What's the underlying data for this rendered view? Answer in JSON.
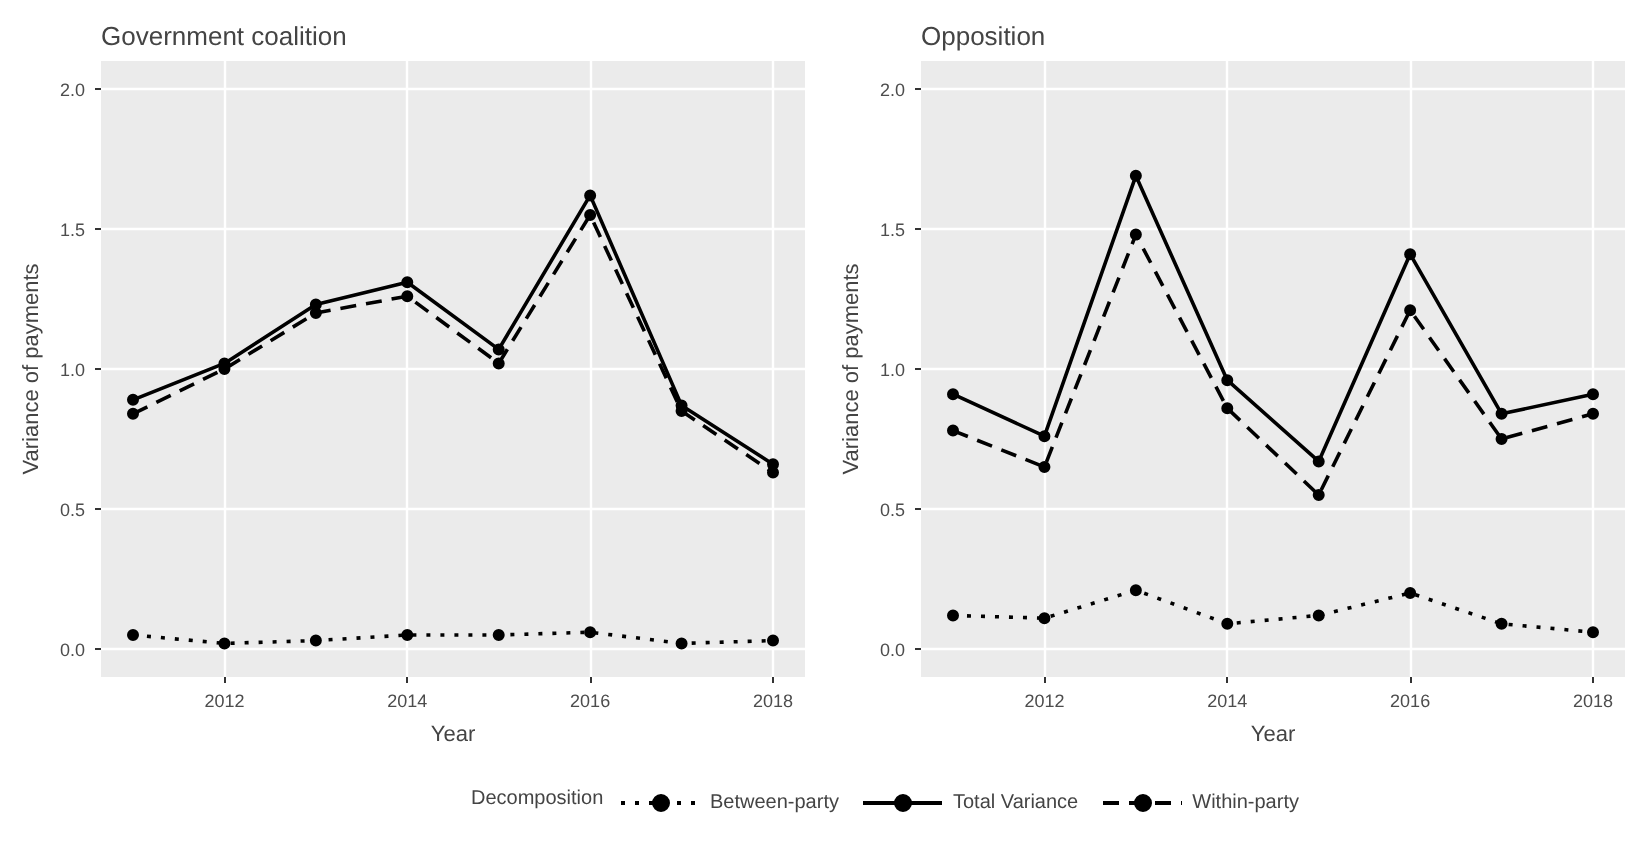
{
  "chart_data": [
    {
      "type": "line",
      "title": "Government coalition",
      "xlabel": "Year",
      "ylabel": "Variance of payments",
      "legend": "bottom",
      "legend_title": "Decomposition",
      "marker": "circle",
      "grid": true,
      "x": [
        2011,
        2012,
        2013,
        2014,
        2015,
        2016,
        2017,
        2018
      ],
      "xlim": [
        2010.65,
        2018.35
      ],
      "xticks": [
        2012,
        2014,
        2016,
        2018
      ],
      "ylim": [
        -0.1,
        2.1
      ],
      "yticks": [
        {
          "value": 0,
          "label": "0.0"
        },
        {
          "value": 0.5,
          "label": "0.5"
        },
        {
          "value": 1,
          "label": "1.0"
        },
        {
          "value": 1.5,
          "label": "1.5"
        },
        {
          "value": 2,
          "label": "2.0"
        }
      ],
      "series": [
        {
          "name": "Between-party",
          "color": "#000000",
          "line_style": "dotted",
          "values": [
            0.05,
            0.02,
            0.03,
            0.05,
            0.05,
            0.06,
            0.02,
            0.03
          ]
        },
        {
          "name": "Total Variance",
          "color": "#000000",
          "line_style": "solid",
          "values": [
            0.89,
            1.02,
            1.23,
            1.31,
            1.07,
            1.62,
            0.87,
            0.66
          ]
        },
        {
          "name": "Within-party",
          "color": "#000000",
          "line_style": "dashed",
          "values": [
            0.84,
            1.0,
            1.2,
            1.26,
            1.02,
            1.55,
            0.85,
            0.63
          ]
        }
      ]
    },
    {
      "type": "line",
      "title": "Opposition",
      "xlabel": "Year",
      "ylabel": "Variance of payments",
      "marker": "circle",
      "grid": true,
      "x": [
        2011,
        2012,
        2013,
        2014,
        2015,
        2016,
        2017,
        2018
      ],
      "xlim": [
        2010.65,
        2018.35
      ],
      "xticks": [
        2012,
        2014,
        2016,
        2018
      ],
      "ylim": [
        -0.1,
        2.1
      ],
      "yticks": [
        {
          "value": 0,
          "label": "0.0"
        },
        {
          "value": 0.5,
          "label": "0.5"
        },
        {
          "value": 1,
          "label": "1.0"
        },
        {
          "value": 1.5,
          "label": "1.5"
        },
        {
          "value": 2,
          "label": "2.0"
        }
      ],
      "series": [
        {
          "color": "#000000",
          "line_style": "dotted",
          "values": [
            0.12,
            0.11,
            0.21,
            0.09,
            0.12,
            0.2,
            0.09,
            0.06
          ]
        },
        {
          "color": "#000000",
          "line_style": "solid",
          "values": [
            0.91,
            0.76,
            1.69,
            0.96,
            0.67,
            1.41,
            0.84,
            0.91
          ]
        },
        {
          "color": "#000000",
          "line_style": "dashed",
          "values": [
            0.78,
            0.65,
            1.48,
            0.86,
            0.55,
            1.21,
            0.75,
            0.84
          ]
        }
      ]
    }
  ]
}
